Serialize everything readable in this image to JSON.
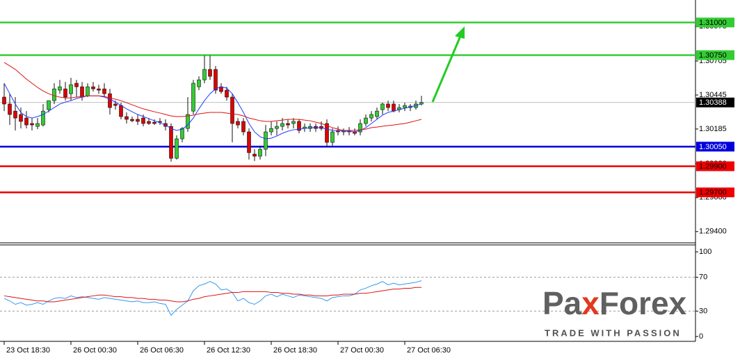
{
  "chart_data": [
    {
      "type": "candlestick",
      "categories": [
        "23 Oct 18:30",
        null,
        null,
        null,
        null,
        null,
        null,
        null,
        null,
        null,
        null,
        null,
        "26 Oct 00:30",
        null,
        null,
        null,
        null,
        null,
        null,
        null,
        null,
        null,
        null,
        null,
        "26 Oct 06:30",
        null,
        null,
        null,
        null,
        null,
        null,
        null,
        null,
        null,
        null,
        null,
        "26 Oct 12:30",
        null,
        null,
        null,
        null,
        null,
        null,
        null,
        null,
        null,
        null,
        null,
        "26 Oct 18:30",
        null,
        null,
        null,
        null,
        null,
        null,
        null,
        null,
        null,
        null,
        null,
        "27 Oct 00:30",
        null,
        null,
        null,
        null,
        null,
        null,
        null,
        null,
        null,
        null,
        null,
        "27 Oct 06:30",
        null,
        null,
        null
      ],
      "open": [
        1.30429,
        1.30376,
        1.30322,
        1.30296,
        1.30269,
        1.30227,
        1.30205,
        1.30216,
        1.30333,
        1.30402,
        1.30482,
        1.30492,
        1.30455,
        1.30535,
        1.30508,
        1.30439,
        1.30508,
        1.30492,
        1.30492,
        1.30455,
        1.30376,
        1.30365,
        1.3028,
        1.30259,
        1.30259,
        1.30269,
        1.30243,
        1.30237,
        1.30243,
        1.30227,
        1.30205,
        1.29961,
        1.3011,
        1.30189,
        1.30322,
        1.30508,
        1.30561,
        1.30641,
        1.30641,
        1.30508,
        1.30482,
        1.30429,
        1.30243,
        1.30243,
        1.30163,
        1.29993,
        1.29977,
        1.3003,
        1.30163,
        1.30189,
        1.30205,
        1.30227,
        1.30227,
        1.30243,
        1.30189,
        1.30189,
        1.30205,
        1.30205,
        1.30227,
        1.30083,
        1.30174,
        1.30163,
        1.30174,
        1.30163,
        1.30163,
        1.30227,
        1.30269,
        1.3028,
        1.30333,
        1.30376,
        1.30376,
        1.30333,
        1.30349,
        1.30349,
        1.30349,
        1.30376
      ],
      "high": [
        1.30535,
        1.30455,
        1.30429,
        1.30349,
        1.30322,
        1.30269,
        1.30269,
        1.30376,
        1.30402,
        1.30535,
        1.30561,
        1.30545,
        1.30577,
        1.30561,
        1.30545,
        1.30535,
        1.30545,
        1.30524,
        1.30535,
        1.30492,
        1.30402,
        1.30386,
        1.30312,
        1.3028,
        1.30296,
        1.30296,
        1.30269,
        1.30259,
        1.30269,
        1.30259,
        1.30227,
        1.30136,
        1.302,
        1.30429,
        1.30561,
        1.30588,
        1.30747,
        1.30747,
        1.30667,
        1.30535,
        1.30508,
        1.30455,
        1.30269,
        1.30269,
        1.30189,
        1.3003,
        1.30057,
        1.30216,
        1.30243,
        1.30243,
        1.30269,
        1.30259,
        1.30269,
        1.30259,
        1.30227,
        1.30227,
        1.30227,
        1.30243,
        1.30259,
        1.30189,
        1.30205,
        1.30189,
        1.302,
        1.30189,
        1.30259,
        1.30296,
        1.30322,
        1.30349,
        1.30386,
        1.30402,
        1.30402,
        1.30376,
        1.30386,
        1.30376,
        1.30402,
        1.30439
      ],
      "low": [
        1.30322,
        1.30216,
        1.30174,
        1.30189,
        1.30189,
        1.30174,
        1.30184,
        1.30205,
        1.30312,
        1.30376,
        1.30455,
        1.30402,
        1.30402,
        1.30429,
        1.30402,
        1.30429,
        1.30471,
        1.30455,
        1.30429,
        1.30296,
        1.30333,
        1.30259,
        1.30227,
        1.30237,
        1.30216,
        1.30205,
        1.30216,
        1.30216,
        1.30216,
        1.30174,
        1.29935,
        1.29951,
        1.30083,
        1.30163,
        1.30296,
        1.30482,
        1.30535,
        1.30561,
        1.30455,
        1.30455,
        1.30402,
        1.30083,
        1.30189,
        1.30136,
        1.29951,
        1.2994,
        1.29951,
        1.29977,
        1.30136,
        1.30136,
        1.30174,
        1.30189,
        1.30189,
        1.30152,
        1.30163,
        1.30163,
        1.30163,
        1.30174,
        1.30046,
        1.30057,
        1.30136,
        1.30136,
        1.30136,
        1.30136,
        1.30136,
        1.30205,
        1.30243,
        1.30259,
        1.30296,
        1.30322,
        1.30312,
        1.30312,
        1.30322,
        1.30322,
        1.30333,
        1.30365
      ],
      "close": [
        1.30376,
        1.30296,
        1.30269,
        1.30243,
        1.30216,
        1.30216,
        1.30227,
        1.30322,
        1.30402,
        1.30492,
        1.30508,
        1.30429,
        1.30524,
        1.30508,
        1.30429,
        1.30508,
        1.30492,
        1.30482,
        1.30455,
        1.30349,
        1.30365,
        1.3028,
        1.30259,
        1.30248,
        1.30243,
        1.30227,
        1.30227,
        1.30227,
        1.30237,
        1.30205,
        1.29961,
        1.3011,
        1.30189,
        1.30296,
        1.30535,
        1.30561,
        1.30641,
        1.30588,
        1.30482,
        1.30471,
        1.30429,
        1.30227,
        1.30216,
        1.30163,
        1.30004,
        1.29977,
        1.3003,
        1.30163,
        1.30189,
        1.30205,
        1.30227,
        1.30216,
        1.30243,
        1.30174,
        1.302,
        1.30205,
        1.30189,
        1.30189,
        1.30083,
        1.30163,
        1.30163,
        1.30174,
        1.30163,
        1.30152,
        1.30227,
        1.30269,
        1.30296,
        1.30322,
        1.30376,
        1.30349,
        1.30322,
        1.30349,
        1.30365,
        1.3036,
        1.30376,
        1.30388
      ],
      "up_color": "#33cc33",
      "down_color": "#dd0000",
      "series": [
        {
          "color": "#1e3cff",
          "values": [
            1.30535,
            1.30455,
            1.30376,
            1.30312,
            1.3028,
            1.30269,
            1.3028,
            1.30296,
            1.30322,
            1.30349,
            1.30376,
            1.30391,
            1.30402,
            1.30418,
            1.30429,
            1.30439,
            1.30439,
            1.30439,
            1.30429,
            1.30413,
            1.30391,
            1.30365,
            1.30339,
            1.30317,
            1.30296,
            1.3028,
            1.30264,
            1.30248,
            1.30232,
            1.30216,
            1.30189,
            1.30174,
            1.30184,
            1.30216,
            1.30269,
            1.30339,
            1.30402,
            1.30455,
            1.30492,
            1.30508,
            1.30498,
            1.30455,
            1.30386,
            1.30312,
            1.30227,
            1.30163,
            1.30126,
            1.3011,
            1.30115,
            1.30131,
            1.30152,
            1.30168,
            1.30179,
            1.30184,
            1.30189,
            1.30195,
            1.30195,
            1.30195,
            1.30184,
            1.30174,
            1.30174,
            1.30168,
            1.30168,
            1.30163,
            1.30174,
            1.30195,
            1.30227,
            1.30259,
            1.30291,
            1.30312,
            1.30322,
            1.30333,
            1.30344,
            1.30354,
            1.30365,
            1.30376
          ]
        },
        {
          "color": "#e01010",
          "values": [
            1.30694,
            1.30668,
            1.30641,
            1.30604,
            1.30567,
            1.30535,
            1.30503,
            1.30476,
            1.30455,
            1.30439,
            1.30429,
            1.30423,
            1.30423,
            1.30429,
            1.30434,
            1.30439,
            1.30439,
            1.30439,
            1.30434,
            1.30423,
            1.30413,
            1.30402,
            1.30386,
            1.3037,
            1.30354,
            1.30339,
            1.30328,
            1.30317,
            1.30307,
            1.30296,
            1.30285,
            1.3028,
            1.3028,
            1.30285,
            1.30291,
            1.30301,
            1.30307,
            1.30312,
            1.30312,
            1.30312,
            1.30307,
            1.30301,
            1.30296,
            1.30285,
            1.30269,
            1.30259,
            1.30248,
            1.30243,
            1.30243,
            1.30248,
            1.30253,
            1.30259,
            1.30259,
            1.30259,
            1.30253,
            1.30248,
            1.30237,
            1.30227,
            1.30211,
            1.30195,
            1.30184,
            1.30174,
            1.30174,
            1.30174,
            1.30179,
            1.30184,
            1.30195,
            1.302,
            1.30206,
            1.30211,
            1.30216,
            1.30222,
            1.30227,
            1.30237,
            1.30248,
            1.30259
          ]
        }
      ],
      "ylim": [
        1.29314,
        1.31172
      ],
      "yticks": [
        {
          "value": 1.3097,
          "label": "1.30970"
        },
        1.30705,
        1.30445,
        1.30185,
        {
          "value": 1.2992,
          "label": "1.29920"
        },
        {
          "value": 1.2966,
          "label": "1.29660"
        },
        {
          "value": 1.294,
          "label": "1.29400"
        }
      ],
      "levels": [
        {
          "value": 1.31,
          "label": "1.31000",
          "color": "#33cc33",
          "text_color": "#000000"
        },
        {
          "value": 1.3075,
          "label": "1.30750",
          "color": "#33cc33",
          "text_color": "#000000"
        },
        {
          "value": 1.3005,
          "label": "1.30050",
          "color": "#0000dd",
          "text_color": "#ffffff"
        },
        {
          "value": 1.299,
          "label": "1.29900",
          "color": "#ee0000",
          "text_color": "#000000"
        },
        {
          "value": 1.297,
          "label": "1.29700",
          "color": "#ee0000",
          "text_color": "#000000"
        }
      ],
      "current_price": 1.30388,
      "current_price_color": "#c0c0c0"
    },
    {
      "type": "line",
      "series": [
        {
          "color": "#3399ee",
          "values": [
            45,
            42,
            38,
            40,
            37,
            38,
            40,
            38,
            42,
            45,
            46,
            45,
            48,
            46,
            47,
            46,
            45,
            44,
            46,
            45,
            44,
            43,
            42,
            41,
            42,
            40,
            40,
            41,
            39,
            38,
            25,
            32,
            37,
            42,
            54,
            60,
            62,
            65,
            62,
            55,
            56,
            52,
            42,
            45,
            40,
            38,
            42,
            48,
            50,
            47,
            50,
            48,
            46,
            49,
            48,
            47,
            46,
            45,
            42,
            46,
            47,
            48,
            48,
            50,
            55,
            57,
            60,
            62,
            65,
            61,
            63,
            61,
            62,
            63,
            64,
            66
          ]
        },
        {
          "color": "#dd1111",
          "values": [
            48,
            47,
            46,
            45,
            44,
            43,
            42,
            42,
            41,
            41,
            42,
            43,
            44,
            45,
            46,
            47,
            48,
            49,
            49,
            48,
            47,
            47,
            46,
            46,
            45,
            45,
            44,
            44,
            43,
            43,
            42,
            41,
            41,
            42,
            44,
            45,
            47,
            48,
            49,
            50,
            51,
            52,
            52,
            53,
            53,
            53,
            53,
            53,
            52,
            52,
            51,
            51,
            50,
            50,
            49,
            49,
            48,
            48,
            48,
            49,
            49,
            50,
            50,
            50,
            51,
            51,
            52,
            53,
            54,
            55,
            56,
            56,
            57,
            57,
            58,
            58
          ]
        }
      ],
      "ylim": [
        0,
        100
      ],
      "yticks": [
        0,
        30,
        70,
        100
      ],
      "levels": [
        30,
        70
      ]
    }
  ],
  "logo": {
    "parts": [
      "Pa",
      "x",
      "Forex"
    ],
    "tagline": "TRADE WITH PASSION"
  }
}
